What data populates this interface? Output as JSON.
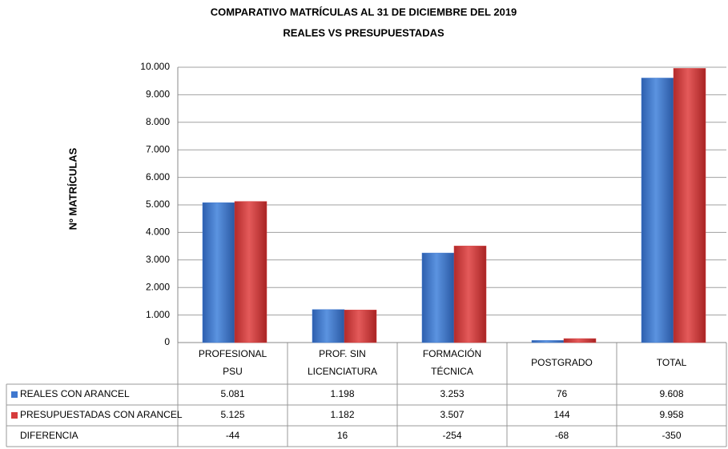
{
  "chart_data": {
    "type": "bar",
    "title": [
      "COMPARATIVO MATRÍCULAS AL 31 DE DICIEMBRE DEL 2019",
      "REALES VS PRESUPUESTADAS"
    ],
    "y_label": "Nº MATRÍCULAS",
    "categories": [
      [
        "PROFESIONAL",
        "PSU"
      ],
      [
        "PROF. SIN",
        "LICENCIATURA"
      ],
      [
        "FORMACIÓN",
        "TÉCNICA"
      ],
      [
        "POSTGRADO"
      ],
      [
        "TOTAL"
      ]
    ],
    "series": [
      {
        "name": "REALES CON ARANCEL",
        "color": "#3f78cf",
        "values": [
          5081,
          1198,
          3253,
          76,
          9608
        ],
        "value_labels": [
          "5.081",
          "1.198",
          "3.253",
          "76",
          "9.608"
        ]
      },
      {
        "name": "PRESUPUESTADAS CON ARANCEL",
        "color": "#d63c3c",
        "values": [
          5125,
          1182,
          3507,
          144,
          9958
        ],
        "value_labels": [
          "5.125",
          "1.182",
          "3.507",
          "144",
          "9.958"
        ]
      }
    ],
    "difference": {
      "name": "DIFERENCIA",
      "values": [
        -44,
        16,
        -254,
        -68,
        -350
      ]
    },
    "ylim": [
      0,
      10000
    ],
    "yticks": [
      0,
      {
        "value": 1000,
        "label": "1.000"
      },
      {
        "value": 2000,
        "label": "2.000"
      },
      {
        "value": 3000,
        "label": "3.000"
      },
      {
        "value": 4000,
        "label": "4.000"
      },
      {
        "value": 5000,
        "label": "5.000"
      },
      {
        "value": 6000,
        "label": "6.000"
      },
      {
        "value": 7000,
        "label": "7.000"
      },
      {
        "value": 8000,
        "label": "8.000"
      },
      {
        "value": 9000,
        "label": "9.000"
      },
      {
        "value": 10000,
        "label": "10.000"
      }
    ],
    "grid": true
  }
}
